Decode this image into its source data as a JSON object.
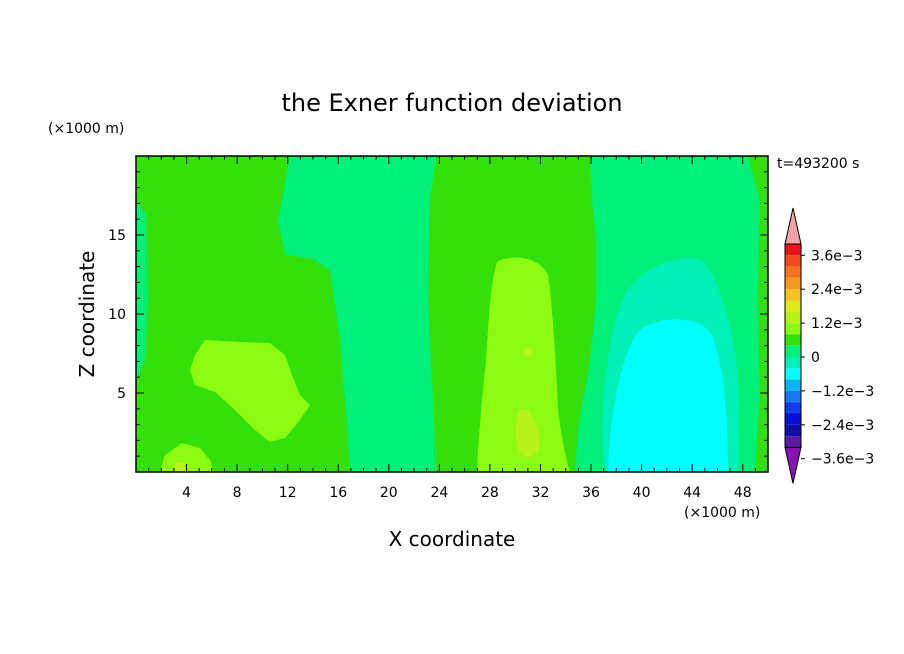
{
  "chart_data": {
    "type": "heatmap",
    "title": "the Exner function deviation",
    "xlabel": "X coordinate",
    "ylabel": "Z coordinate",
    "x_unit": "(×1000 m)",
    "y_unit": "(×1000 m)",
    "time_label": "t=493200 s",
    "xlim": [
      0,
      50
    ],
    "ylim": [
      0,
      20
    ],
    "xticks": [
      "4",
      "8",
      "12",
      "16",
      "20",
      "24",
      "28",
      "32",
      "36",
      "40",
      "44",
      "48"
    ],
    "yticks": [
      "5",
      "10",
      "15"
    ],
    "colorbar": {
      "labels": [
        "3.6e−3",
        "2.4e−3",
        "1.2e−3",
        "0",
        "−1.2e−3",
        "−2.4e−3",
        "−3.6e−3"
      ],
      "colors_top_to_bottom": [
        "#f3a3a3",
        "#e8161c",
        "#f24a1c",
        "#f5731e",
        "#f79b20",
        "#f7c21f",
        "#dcea19",
        "#b7f21b",
        "#8afb11",
        "#34e00a",
        "#00f07a",
        "#00f0b8",
        "#00ffff",
        "#0ab4f0",
        "#1478ee",
        "#103cf0",
        "#0a10d8",
        "#120fa8",
        "#5a18a4",
        "#8a12b4"
      ]
    },
    "regions": [
      {
        "description": "x 0-20 band",
        "value": 0.0004
      },
      {
        "description": "x 20-24 band",
        "value": -0.0004
      },
      {
        "description": "x 24-35 band",
        "value": 0.0004
      },
      {
        "description": "x 28-32 core",
        "value": 0.0008
      },
      {
        "description": "x 35-50 band",
        "value": -0.0004
      },
      {
        "description": "x 38-48 minimum",
        "value": -0.001
      }
    ]
  }
}
